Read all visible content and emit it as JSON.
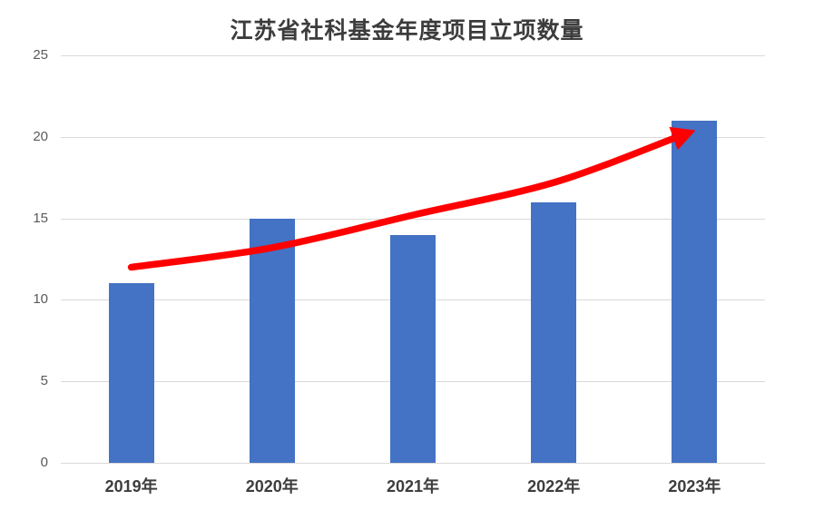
{
  "page": {
    "background": "#FFFFFF"
  },
  "chart_data": {
    "type": "bar",
    "title": "江苏省社科基金年度项目立项数量",
    "categories": [
      "2019年",
      "2020年",
      "2021年",
      "2022年",
      "2023年"
    ],
    "values": [
      11,
      15,
      14,
      16,
      21
    ],
    "xlabel": "",
    "ylabel": "",
    "ylim": [
      0,
      25
    ],
    "yticks": [
      0,
      5,
      10,
      15,
      20,
      25
    ],
    "grid": true,
    "legend": "none",
    "colors": {
      "bar": "#4472C4",
      "gridline": "#D9D9D9",
      "axis_line": "#D9D9D9",
      "title_text": "#3C3C3C",
      "y_tick_text": "#595959",
      "x_tick_text": "#3D3D3D",
      "trend_arrow": "#FF0000",
      "background": "#FFFFFF"
    },
    "annotation": {
      "type": "curved_trend_arrow",
      "color": "#FF0000",
      "description": "thick red curved arrow rising left-to-right, from above the 2019 bar to the top of the 2023 bar",
      "points": [
        {
          "category_index": 0,
          "value": 12.0
        },
        {
          "category_index": 1,
          "value": 13.2
        },
        {
          "category_index": 2,
          "value": 15.2
        },
        {
          "category_index": 3,
          "value": 17.2
        },
        {
          "category_index": 3.85,
          "value": 19.9
        }
      ]
    }
  }
}
